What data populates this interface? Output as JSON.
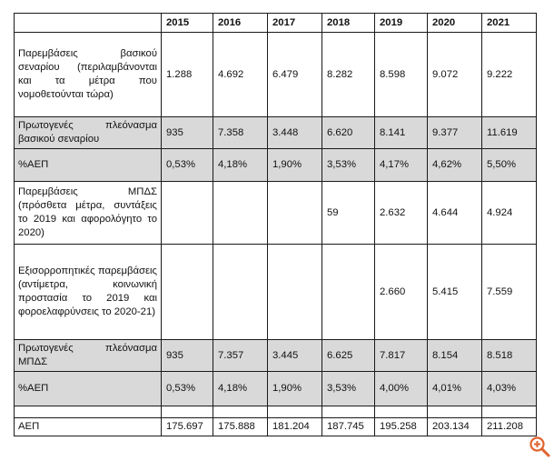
{
  "table": {
    "years": [
      "2015",
      "2016",
      "2017",
      "2018",
      "2019",
      "2020",
      "2021"
    ],
    "rows": [
      {
        "label": "Παρεμβάσεις βασικού σεναρίου (περιλαμβάνονται και τα μέτρα που νομοθετούνται τώρα)",
        "values": [
          "1.288",
          "4.692",
          "6.479",
          "8.282",
          "8.598",
          "9.072",
          "9.222"
        ]
      },
      {
        "label": "Πρωτογενές πλεόνασμα βασικού σεναρίου",
        "values": [
          "935",
          "7.358",
          "3.448",
          "6.620",
          "8.141",
          "9.377",
          "11.619"
        ]
      },
      {
        "label": "%ΑΕΠ",
        "values": [
          "0,53%",
          "4,18%",
          "1,90%",
          "3,53%",
          "4,17%",
          "4,62%",
          "5,50%"
        ]
      },
      {
        "label": "Παρεμβάσεις ΜΠΔΣ (πρόσθετα μέτρα, συντάξεις το 2019 και αφορολόγητο το 2020)",
        "values": [
          "",
          "",
          "",
          "59",
          "2.632",
          "4.644",
          "4.924"
        ]
      },
      {
        "label": "Εξισορροπητικές παρεμβάσεις (αντίμετρα, κοινωνική προστασία το 2019 και φοροελαφρύνσεις το 2020-21)",
        "values": [
          "",
          "",
          "",
          "",
          "2.660",
          "5.415",
          "7.559"
        ]
      },
      {
        "label": "Πρωτογενές πλεόνασμα ΜΠΔΣ",
        "values": [
          "935",
          "7.357",
          "3.445",
          "6.625",
          "7.817",
          "8.154",
          "8.518"
        ]
      },
      {
        "label": "%ΑΕΠ",
        "values": [
          "0,53%",
          "4,18%",
          "1,90%",
          "3,53%",
          "4,00%",
          "4,01%",
          "4,03%"
        ]
      },
      {
        "label": "ΑΕΠ",
        "values": [
          "175.697",
          "175.888",
          "181.204",
          "187.745",
          "195.258",
          "203.134",
          "211.208"
        ]
      }
    ]
  },
  "zoom_icon": "zoom-plus-icon"
}
